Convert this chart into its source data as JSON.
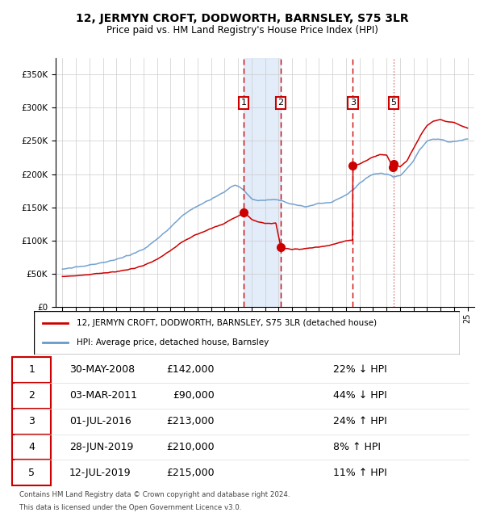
{
  "title": "12, JERMYN CROFT, DODWORTH, BARNSLEY, S75 3LR",
  "subtitle": "Price paid vs. HM Land Registry's House Price Index (HPI)",
  "footer1": "Contains HM Land Registry data © Crown copyright and database right 2024.",
  "footer2": "This data is licensed under the Open Government Licence v3.0.",
  "legend_label_red": "12, JERMYN CROFT, DODWORTH, BARNSLEY, S75 3LR (detached house)",
  "legend_label_blue": "HPI: Average price, detached house, Barnsley",
  "transactions": [
    {
      "num": 1,
      "date": "30-MAY-2008",
      "price": 142000,
      "pct": "22%",
      "dir": "↓",
      "x_year": 2008.42
    },
    {
      "num": 2,
      "date": "03-MAR-2011",
      "price": 90000,
      "pct": "44%",
      "dir": "↓",
      "x_year": 2011.17
    },
    {
      "num": 3,
      "date": "01-JUL-2016",
      "price": 213000,
      "pct": "24%",
      "dir": "↑",
      "x_year": 2016.5
    },
    {
      "num": 4,
      "date": "28-JUN-2019",
      "price": 210000,
      "pct": "8%",
      "dir": "↑",
      "x_year": 2019.49
    },
    {
      "num": 5,
      "date": "12-JUL-2019",
      "price": 215000,
      "pct": "11%",
      "dir": "↑",
      "x_year": 2019.53
    }
  ],
  "ylim": [
    0,
    375000
  ],
  "xlim_start": 1994.5,
  "xlim_end": 2025.5,
  "plot_bg": "#ffffff",
  "red_color": "#cc0000",
  "blue_color": "#6699cc",
  "shade_color": "#dce8f8",
  "grid_color": "#cccccc",
  "dashed_color": "#cc0000",
  "dotted_color": "#cc6666",
  "hpi_points": [
    [
      1995.0,
      57000
    ],
    [
      1996.0,
      60000
    ],
    [
      1997.0,
      63000
    ],
    [
      1998.0,
      67000
    ],
    [
      1999.0,
      72000
    ],
    [
      2000.0,
      78000
    ],
    [
      2001.0,
      87000
    ],
    [
      2002.0,
      102000
    ],
    [
      2003.0,
      120000
    ],
    [
      2004.0,
      140000
    ],
    [
      2005.0,
      152000
    ],
    [
      2006.0,
      162000
    ],
    [
      2007.0,
      173000
    ],
    [
      2007.4,
      180000
    ],
    [
      2007.8,
      183000
    ],
    [
      2008.2,
      180000
    ],
    [
      2008.6,
      172000
    ],
    [
      2009.0,
      163000
    ],
    [
      2009.5,
      160000
    ],
    [
      2010.0,
      161000
    ],
    [
      2010.5,
      162000
    ],
    [
      2011.0,
      161000
    ],
    [
      2011.5,
      158000
    ],
    [
      2012.0,
      155000
    ],
    [
      2012.5,
      153000
    ],
    [
      2013.0,
      151000
    ],
    [
      2013.5,
      153000
    ],
    [
      2014.0,
      156000
    ],
    [
      2014.5,
      157000
    ],
    [
      2015.0,
      159000
    ],
    [
      2015.5,
      163000
    ],
    [
      2016.0,
      169000
    ],
    [
      2016.5,
      176000
    ],
    [
      2017.0,
      186000
    ],
    [
      2017.5,
      194000
    ],
    [
      2018.0,
      199000
    ],
    [
      2018.5,
      201000
    ],
    [
      2019.0,
      200000
    ],
    [
      2019.5,
      196000
    ],
    [
      2020.0,
      198000
    ],
    [
      2020.5,
      208000
    ],
    [
      2021.0,
      220000
    ],
    [
      2021.5,
      238000
    ],
    [
      2022.0,
      250000
    ],
    [
      2022.5,
      253000
    ],
    [
      2023.0,
      252000
    ],
    [
      2023.5,
      249000
    ],
    [
      2024.0,
      249000
    ],
    [
      2024.5,
      251000
    ],
    [
      2025.0,
      253000
    ]
  ],
  "red_points": [
    [
      1995.0,
      46000
    ],
    [
      1996.0,
      47500
    ],
    [
      1997.0,
      49000
    ],
    [
      1998.0,
      51000
    ],
    [
      1999.0,
      53500
    ],
    [
      2000.0,
      57000
    ],
    [
      2001.0,
      62000
    ],
    [
      2002.0,
      72000
    ],
    [
      2003.0,
      85000
    ],
    [
      2004.0,
      100000
    ],
    [
      2005.0,
      110000
    ],
    [
      2006.0,
      118000
    ],
    [
      2007.0,
      126000
    ],
    [
      2007.5,
      132000
    ],
    [
      2008.0,
      137000
    ],
    [
      2008.42,
      142000
    ],
    [
      2008.7,
      138000
    ],
    [
      2009.0,
      132000
    ],
    [
      2009.5,
      128000
    ],
    [
      2010.0,
      126000
    ],
    [
      2010.5,
      126000
    ],
    [
      2010.8,
      126500
    ],
    [
      2011.17,
      90000
    ],
    [
      2011.5,
      88000
    ],
    [
      2012.0,
      87500
    ],
    [
      2012.5,
      87000
    ],
    [
      2013.0,
      88000
    ],
    [
      2013.5,
      89000
    ],
    [
      2014.0,
      90500
    ],
    [
      2014.5,
      92000
    ],
    [
      2015.0,
      94000
    ],
    [
      2015.5,
      97000
    ],
    [
      2016.0,
      100000
    ],
    [
      2016.499,
      100500
    ],
    [
      2016.5,
      213000
    ],
    [
      2017.0,
      215000
    ],
    [
      2017.5,
      220000
    ],
    [
      2018.0,
      226000
    ],
    [
      2018.5,
      229000
    ],
    [
      2019.0,
      229000
    ],
    [
      2019.49,
      210000
    ],
    [
      2019.53,
      215000
    ],
    [
      2020.0,
      211000
    ],
    [
      2020.5,
      220000
    ],
    [
      2021.0,
      238000
    ],
    [
      2021.5,
      258000
    ],
    [
      2022.0,
      273000
    ],
    [
      2022.5,
      280000
    ],
    [
      2023.0,
      282000
    ],
    [
      2023.5,
      279000
    ],
    [
      2024.0,
      277000
    ],
    [
      2024.5,
      273000
    ],
    [
      2025.0,
      269000
    ]
  ]
}
